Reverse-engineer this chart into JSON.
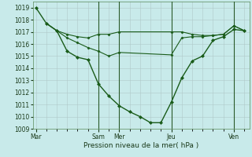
{
  "xlabel": "Pression niveau de la mer( hPa )",
  "bg_color": "#c8eaea",
  "grid_color": "#b0c8c8",
  "line_color": "#1a5c1a",
  "ylim": [
    1009,
    1019.5
  ],
  "yticks": [
    1009,
    1010,
    1011,
    1012,
    1013,
    1014,
    1015,
    1016,
    1017,
    1018,
    1019
  ],
  "xtick_labels": [
    "Mar",
    "",
    "Sam",
    "Mer",
    "",
    "Jeu",
    "",
    "Ven"
  ],
  "xtick_positions": [
    0,
    3,
    6,
    8,
    10,
    13,
    16,
    19
  ],
  "vlines": [
    6,
    8,
    13,
    19
  ],
  "series1_x": [
    0,
    1,
    2,
    3,
    4,
    5,
    6,
    7,
    8,
    9,
    10,
    11,
    12,
    13,
    14,
    15,
    16,
    17,
    18,
    19,
    20
  ],
  "series1_y": [
    1019,
    1017.7,
    1017.1,
    1015.4,
    1014.9,
    1014.7,
    1012.7,
    1011.7,
    1010.9,
    1010.4,
    1010.0,
    1009.5,
    1009.5,
    1011.2,
    1013.2,
    1014.6,
    1015.0,
    1016.3,
    1016.6,
    1017.2,
    1017.1
  ],
  "series2_x": [
    1,
    2,
    3,
    4,
    5,
    6,
    7,
    8,
    13,
    14,
    15,
    16,
    17,
    18,
    19,
    20
  ],
  "series2_y": [
    1017.7,
    1017.1,
    1016.8,
    1016.6,
    1016.5,
    1016.8,
    1016.8,
    1017.0,
    1017.0,
    1017.0,
    1016.8,
    1016.7,
    1016.7,
    1016.8,
    1017.5,
    1017.1
  ],
  "series3_x": [
    1,
    2,
    3,
    4,
    5,
    6,
    7,
    8,
    13,
    14,
    15,
    16,
    17,
    18,
    19,
    20
  ],
  "series3_y": [
    1017.7,
    1017.1,
    1016.5,
    1016.1,
    1015.7,
    1015.4,
    1015.0,
    1015.3,
    1015.1,
    1016.5,
    1016.6,
    1016.6,
    1016.7,
    1016.8,
    1017.5,
    1017.1
  ]
}
